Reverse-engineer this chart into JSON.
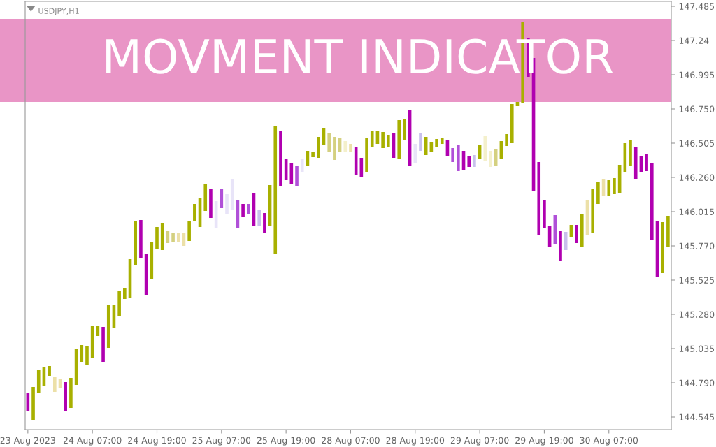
{
  "chart_data": {
    "type": "bar",
    "title": "MOVMENT INDICATOR",
    "subtitle": "USDJPY,H1",
    "categories": [
      "23 Aug 2023",
      null,
      null,
      null,
      null,
      null,
      null,
      null,
      null,
      null,
      null,
      null,
      "24 Aug 07:00",
      null,
      null,
      null,
      null,
      null,
      null,
      null,
      null,
      null,
      null,
      null,
      "24 Aug 19:00",
      null,
      null,
      null,
      null,
      null,
      null,
      null,
      null,
      null,
      null,
      null,
      "25 Aug 07:00",
      null,
      null,
      null,
      null,
      null,
      null,
      null,
      null,
      null,
      null,
      null,
      "25 Aug 19:00",
      null,
      null,
      null,
      null,
      null,
      null,
      null,
      null,
      null,
      null,
      null,
      "28 Aug 07:00",
      null,
      null,
      null,
      null,
      null,
      null,
      null,
      null,
      null,
      null,
      null,
      "28 Aug 19:00",
      null,
      null,
      null,
      null,
      null,
      null,
      null,
      null,
      null,
      null,
      null,
      "29 Aug 07:00",
      null,
      null,
      null,
      null,
      null,
      null,
      null,
      null,
      null,
      null,
      null,
      "29 Aug 19:00",
      null,
      null,
      null,
      null,
      null,
      null,
      null,
      null,
      null,
      null,
      null,
      "30 Aug 07:00",
      null,
      null,
      null,
      null,
      null,
      null,
      null,
      null,
      null,
      null,
      null
    ],
    "base": [
      144.59,
      144.525,
      144.72,
      144.765,
      144.835,
      144.725,
      144.755,
      144.59,
      144.61,
      144.775,
      144.935,
      144.92,
      144.97,
      145.125,
      144.935,
      145.04,
      145.185,
      145.265,
      145.39,
      145.395,
      145.635,
      145.685,
      145.42,
      145.535,
      145.745,
      145.74,
      145.79,
      145.8,
      145.795,
      145.77,
      145.805,
      145.945,
      145.905,
      146.02,
      145.97,
      145.895,
      146.04,
      145.995,
      146.03,
      145.895,
      145.975,
      146.0,
      145.915,
      145.915,
      145.865,
      145.91,
      145.71,
      146.195,
      146.24,
      146.215,
      146.195,
      146.3,
      146.345,
      146.405,
      146.4,
      146.495,
      146.445,
      146.385,
      146.445,
      146.445,
      146.445,
      146.28,
      146.265,
      146.3,
      146.48,
      146.5,
      146.47,
      146.48,
      146.4,
      146.395,
      146.53,
      146.345,
      146.36,
      146.45,
      146.42,
      146.445,
      146.48,
      146.5,
      146.41,
      146.37,
      146.305,
      146.31,
      146.335,
      146.335,
      146.39,
      146.38,
      146.335,
      146.345,
      146.395,
      146.485,
      146.505,
      146.77,
      146.795,
      146.98,
      146.165,
      145.845,
      145.895,
      145.76,
      145.785,
      145.66,
      145.74,
      145.83,
      145.79,
      145.765,
      145.845,
      145.865,
      146.07,
      146.13,
      146.125,
      146.14,
      146.145,
      146.3,
      146.34,
      146.245,
      146.3,
      146.305,
      145.815,
      145.55,
      145.575,
      145.765
    ],
    "values": [
      0.125,
      0.235,
      0.16,
      0.14,
      0.075,
      0.105,
      0.06,
      0.205,
      0.215,
      0.255,
      0.125,
      0.13,
      0.225,
      0.07,
      0.255,
      0.31,
      0.165,
      0.185,
      0.08,
      0.28,
      0.315,
      0.27,
      0.295,
      0.26,
      0.16,
      0.19,
      0.085,
      0.065,
      0.065,
      0.095,
      0.145,
      0.125,
      0.205,
      0.19,
      0.205,
      0.195,
      0.135,
      0.145,
      0.22,
      0.205,
      0.095,
      0.07,
      0.23,
      0.115,
      0.14,
      0.295,
      0.92,
      0.395,
      0.15,
      0.145,
      0.145,
      0.095,
      0.105,
      0.035,
      0.15,
      0.12,
      0.135,
      0.165,
      0.1,
      0.075,
      0.055,
      0.195,
      0.135,
      0.24,
      0.115,
      0.095,
      0.115,
      0.08,
      0.18,
      0.275,
      0.145,
      0.395,
      0.14,
      0.125,
      0.13,
      0.07,
      0.055,
      0.045,
      0.12,
      0.1,
      0.185,
      0.14,
      0.075,
      0.085,
      0.1,
      0.175,
      0.115,
      0.12,
      0.125,
      0.085,
      0.28,
      0.03,
      0.575,
      0.28,
      0.95,
      0.525,
      0.2,
      0.155,
      0.205,
      0.215,
      0.13,
      0.09,
      0.13,
      0.235,
      0.255,
      0.315,
      0.16,
      0.12,
      0.115,
      0.115,
      0.205,
      0.205,
      0.19,
      0.23,
      0.11,
      0.125,
      0.55,
      0.395,
      0.365,
      0.22
    ],
    "colors": [
      "#b000b0",
      "#a8b000",
      "#a8b000",
      "#a8b000",
      "#a8b000",
      "#ece0a8",
      "#ece0a8",
      "#b000b0",
      "#a8b000",
      "#a8b000",
      "#a8b000",
      "#a8b000",
      "#a8b000",
      "#a8b000",
      "#b000b0",
      "#a8b000",
      "#a8b000",
      "#a8b000",
      "#a8b000",
      "#a8b000",
      "#a8b000",
      "#b000b0",
      "#b000b0",
      "#a8b000",
      "#a8b000",
      "#a8b000",
      "#d4d080",
      "#d4d080",
      "#ece0a8",
      "#ece0a8",
      "#a8b000",
      "#a8b000",
      "#a8b000",
      "#a8b000",
      "#b000b0",
      "#e8e4f8",
      "#b050d8",
      "#e8e4f8",
      "#e8e4f8",
      "#b050d8",
      "#b000b0",
      "#b050d8",
      "#b000b0",
      "#c8c0ec",
      "#b000b0",
      "#a8b000",
      "#a8b000",
      "#b000b0",
      "#b000b0",
      "#b000b0",
      "#b050d8",
      "#e8e4f8",
      "#a8b000",
      "#a8b000",
      "#a8b000",
      "#a8b000",
      "#d4d080",
      "#d4d080",
      "#d4d080",
      "#f4f0cc",
      "#ece0a8",
      "#b000b0",
      "#b000b0",
      "#a8b000",
      "#a8b000",
      "#a8b000",
      "#a8b000",
      "#a8b000",
      "#b000b0",
      "#a8b000",
      "#a8b000",
      "#b000b0",
      "#e8e4f8",
      "#c8c0ec",
      "#a8b000",
      "#a8b000",
      "#a8b000",
      "#a8b000",
      "#b000b0",
      "#b050d8",
      "#b050d8",
      "#b000b0",
      "#b000b0",
      "#c8c0ec",
      "#a8b000",
      "#f4f0cc",
      "#f4f0cc",
      "#d4d080",
      "#a8b000",
      "#a8b000",
      "#a8b000",
      "#a8b000",
      "#a8b000",
      "#b000b0",
      "#b000b0",
      "#b000b0",
      "#b000b0",
      "#b000b0",
      "#b050d8",
      "#b000b0",
      "#c8c0ec",
      "#a8b000",
      "#b000b0",
      "#a8b000",
      "#ece0a8",
      "#a8b000",
      "#a8b000",
      "#ece0a8",
      "#a8b000",
      "#a8b000",
      "#a8b000",
      "#a8b000",
      "#a8b000",
      "#b000b0",
      "#b000b0",
      "#b000b0",
      "#b000b0",
      "#b000b0",
      "#a8b000",
      "#a8b000"
    ],
    "ylim": [
      144.455,
      147.52
    ],
    "yticks": [
      144.545,
      {
        "value": 144.79,
        "label": "144.790"
      },
      145.035,
      {
        "value": 145.28,
        "label": "145.280"
      },
      145.525,
      {
        "value": 145.77,
        "label": "145.770"
      },
      146.015,
      {
        "value": 146.26,
        "label": "146.260"
      },
      146.505,
      {
        "value": 146.75,
        "label": "146.750"
      },
      146.995,
      147.24,
      147.485
    ],
    "grid": false,
    "legend": false
  }
}
